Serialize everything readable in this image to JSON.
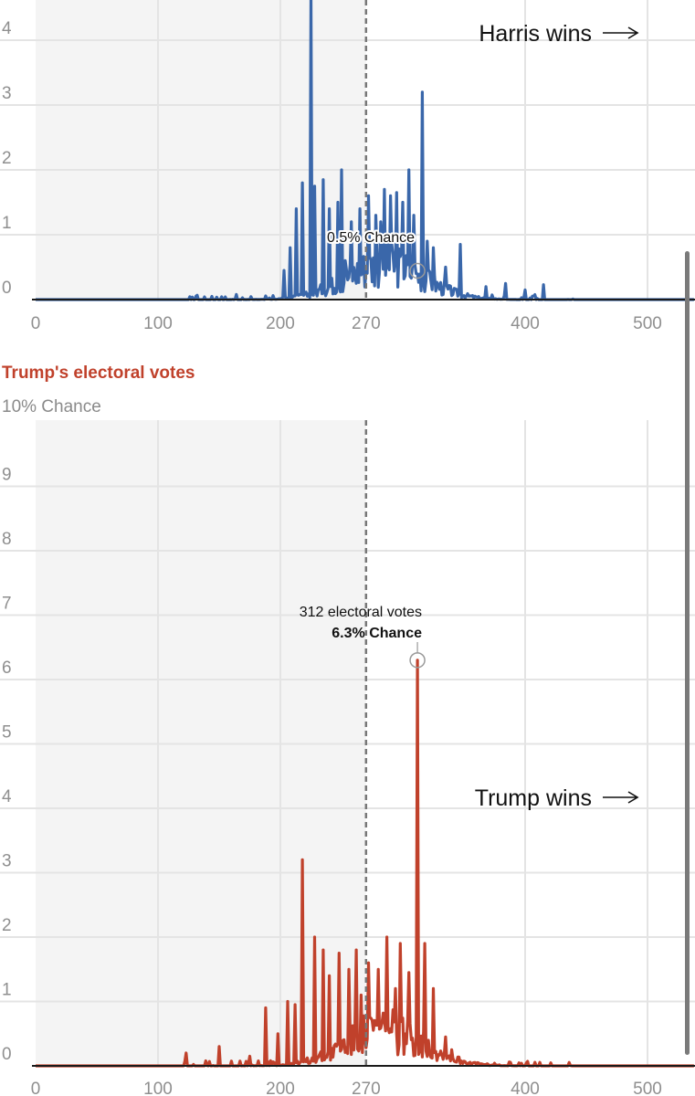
{
  "colors": {
    "harris": "#3a67aa",
    "trump": "#c0412b",
    "grid": "#e4e4e4",
    "shade": "#f4f4f4",
    "baseline": "#1a1a1a",
    "threshold": "#777777",
    "scrollbar": "#7a7a7a"
  },
  "chart_data": [
    {
      "type": "line",
      "series": [
        {
          "name": "Harris",
          "color": "#3a67aa"
        }
      ],
      "x_ticks": [
        0,
        100,
        200,
        270,
        400,
        500
      ],
      "y_ticks": [
        0,
        1,
        2,
        3,
        4
      ],
      "xlim": [
        0,
        538
      ],
      "ylim": [
        0,
        4.5
      ],
      "threshold": 270,
      "win_label": "Harris wins",
      "annotation": {
        "text": "0.5% Chance",
        "x": 312,
        "y": 0.5
      },
      "peaks": [
        {
          "x": 225,
          "y": 4.7
        },
        {
          "x": 316,
          "y": 3.2
        },
        {
          "x": 305,
          "y": 2.0
        },
        {
          "x": 250,
          "y": 2.0
        },
        {
          "x": 235,
          "y": 1.85
        },
        {
          "x": 272,
          "y": 1.6
        },
        {
          "x": 228,
          "y": 1.75
        },
        {
          "x": 218,
          "y": 1.8
        },
        {
          "x": 213,
          "y": 1.4
        },
        {
          "x": 285,
          "y": 1.7
        },
        {
          "x": 295,
          "y": 1.65
        },
        {
          "x": 240,
          "y": 1.4
        },
        {
          "x": 258,
          "y": 1.2
        },
        {
          "x": 265,
          "y": 1.4
        },
        {
          "x": 290,
          "y": 1.6
        },
        {
          "x": 300,
          "y": 1.5
        },
        {
          "x": 309,
          "y": 1.3
        },
        {
          "x": 247,
          "y": 1.5
        },
        {
          "x": 278,
          "y": 1.3
        },
        {
          "x": 325,
          "y": 0.8
        },
        {
          "x": 335,
          "y": 0.5
        },
        {
          "x": 347,
          "y": 0.85
        },
        {
          "x": 282,
          "y": 1.2
        },
        {
          "x": 320,
          "y": 0.9
        },
        {
          "x": 253,
          "y": 0.6
        },
        {
          "x": 208,
          "y": 0.8
        },
        {
          "x": 203,
          "y": 0.45
        },
        {
          "x": 384,
          "y": 0.25
        },
        {
          "x": 415,
          "y": 0.23
        },
        {
          "x": 400,
          "y": 0.15
        },
        {
          "x": 368,
          "y": 0.2
        }
      ]
    },
    {
      "type": "line",
      "title": "Trump's electoral votes",
      "subtitle": "10% Chance",
      "series": [
        {
          "name": "Trump",
          "color": "#c0412b"
        }
      ],
      "x_ticks": [
        0,
        100,
        200,
        270,
        400,
        500
      ],
      "y_ticks": [
        0,
        1,
        2,
        3,
        4,
        5,
        6,
        7,
        8,
        9
      ],
      "xlim": [
        0,
        538
      ],
      "ylim": [
        0,
        10
      ],
      "threshold": 270,
      "win_label": "Trump wins",
      "annotation": {
        "line1": "312 electoral votes",
        "line2": "6.3% Chance",
        "x": 312,
        "y": 6.3
      },
      "peaks": [
        {
          "x": 312,
          "y": 6.3
        },
        {
          "x": 218,
          "y": 3.2
        },
        {
          "x": 228,
          "y": 2.0
        },
        {
          "x": 287,
          "y": 2.0
        },
        {
          "x": 298,
          "y": 1.9
        },
        {
          "x": 235,
          "y": 1.8
        },
        {
          "x": 248,
          "y": 1.75
        },
        {
          "x": 262,
          "y": 1.8
        },
        {
          "x": 318,
          "y": 1.9
        },
        {
          "x": 272,
          "y": 1.6
        },
        {
          "x": 256,
          "y": 1.5
        },
        {
          "x": 240,
          "y": 1.4
        },
        {
          "x": 305,
          "y": 1.45
        },
        {
          "x": 280,
          "y": 1.5
        },
        {
          "x": 212,
          "y": 0.95
        },
        {
          "x": 206,
          "y": 1.0
        },
        {
          "x": 325,
          "y": 1.2
        },
        {
          "x": 188,
          "y": 0.9
        },
        {
          "x": 198,
          "y": 0.5
        },
        {
          "x": 294,
          "y": 1.2
        },
        {
          "x": 266,
          "y": 1.1
        },
        {
          "x": 335,
          "y": 0.45
        },
        {
          "x": 340,
          "y": 0.25
        },
        {
          "x": 150,
          "y": 0.3
        },
        {
          "x": 123,
          "y": 0.2
        },
        {
          "x": 175,
          "y": 0.15
        }
      ]
    }
  ]
}
